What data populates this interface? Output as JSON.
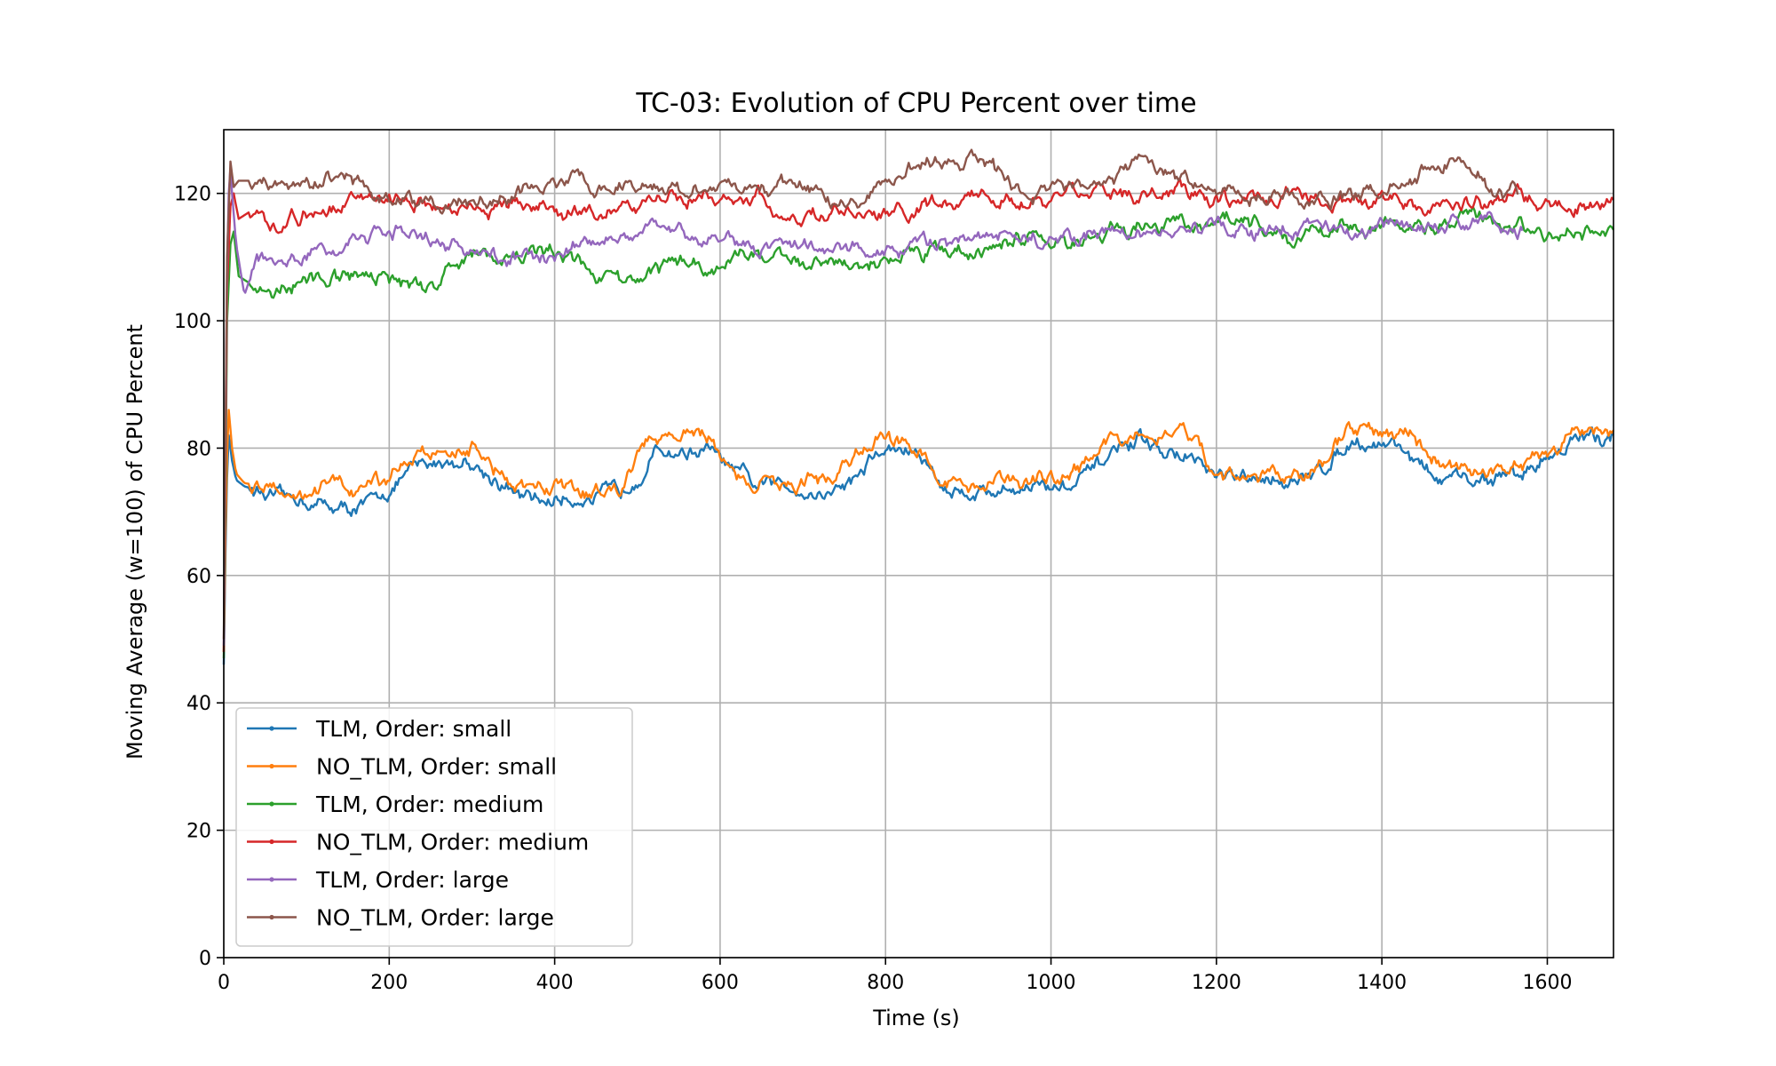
{
  "chart_data": {
    "type": "line",
    "title": "TC-03: Evolution of CPU Percent over time",
    "xlabel": "Time (s)",
    "ylabel": "Moving Average (w=100) of CPU Percent",
    "xlim": [
      0,
      1680
    ],
    "ylim": [
      0,
      130
    ],
    "xticks": [
      0,
      200,
      400,
      600,
      800,
      1000,
      1200,
      1400,
      1600
    ],
    "yticks": [
      0,
      20,
      40,
      60,
      80,
      100,
      120
    ],
    "grid": true,
    "legend_position": "lower-left",
    "series": [
      {
        "name": "TLM, Order: small",
        "color": "#1f77b4",
        "x_end": 1680,
        "points": [
          [
            0,
            46
          ],
          [
            3,
            72
          ],
          [
            6,
            82
          ],
          [
            10,
            78
          ],
          [
            15,
            75
          ],
          [
            25,
            74
          ],
          [
            50,
            73
          ],
          [
            100,
            72.5
          ],
          [
            150,
            71.5
          ],
          [
            180,
            72
          ],
          [
            200,
            74
          ],
          [
            230,
            77.5
          ],
          [
            260,
            78
          ],
          [
            300,
            78
          ],
          [
            330,
            76
          ],
          [
            350,
            73
          ],
          [
            370,
            72
          ],
          [
            400,
            72
          ],
          [
            450,
            72.5
          ],
          [
            480,
            74
          ],
          [
            520,
            79
          ],
          [
            560,
            79
          ],
          [
            590,
            78.5
          ],
          [
            620,
            75
          ],
          [
            640,
            73
          ],
          [
            680,
            73.5
          ],
          [
            730,
            73.5
          ],
          [
            760,
            76
          ],
          [
            790,
            79.5
          ],
          [
            830,
            79.5
          ],
          [
            850,
            77
          ],
          [
            870,
            74
          ],
          [
            900,
            73.5
          ],
          [
            950,
            73.5
          ],
          [
            1000,
            74
          ],
          [
            1040,
            76
          ],
          [
            1070,
            79
          ],
          [
            1120,
            79.5
          ],
          [
            1150,
            79
          ],
          [
            1180,
            77
          ],
          [
            1200,
            74
          ],
          [
            1250,
            74
          ],
          [
            1300,
            74.5
          ],
          [
            1340,
            78
          ],
          [
            1360,
            81
          ],
          [
            1400,
            81
          ],
          [
            1430,
            80
          ],
          [
            1450,
            77
          ],
          [
            1470,
            75.5
          ],
          [
            1520,
            75.5
          ],
          [
            1570,
            75.5
          ],
          [
            1600,
            78
          ],
          [
            1630,
            81
          ],
          [
            1680,
            82
          ]
        ]
      },
      {
        "name": "NO_TLM, Order: small",
        "color": "#ff7f0e",
        "x_end": 1680,
        "points": [
          [
            0,
            48
          ],
          [
            3,
            75
          ],
          [
            6,
            86
          ],
          [
            10,
            80
          ],
          [
            15,
            76
          ],
          [
            25,
            74.5
          ],
          [
            50,
            74
          ],
          [
            100,
            74
          ],
          [
            150,
            73
          ],
          [
            180,
            73.5
          ],
          [
            200,
            76
          ],
          [
            230,
            79.5
          ],
          [
            260,
            79.5
          ],
          [
            300,
            80
          ],
          [
            330,
            77
          ],
          [
            350,
            74
          ],
          [
            370,
            73
          ],
          [
            400,
            73.5
          ],
          [
            450,
            73
          ],
          [
            480,
            76
          ],
          [
            520,
            82
          ],
          [
            560,
            82.5
          ],
          [
            590,
            82
          ],
          [
            620,
            76
          ],
          [
            640,
            74
          ],
          [
            680,
            74
          ],
          [
            730,
            74
          ],
          [
            760,
            78
          ],
          [
            790,
            81
          ],
          [
            830,
            81
          ],
          [
            850,
            78
          ],
          [
            870,
            75
          ],
          [
            900,
            74
          ],
          [
            950,
            74.5
          ],
          [
            1000,
            74.5
          ],
          [
            1040,
            77.5
          ],
          [
            1070,
            82
          ],
          [
            1120,
            82
          ],
          [
            1150,
            82
          ],
          [
            1180,
            79
          ],
          [
            1200,
            75.5
          ],
          [
            1250,
            75
          ],
          [
            1300,
            75.5
          ],
          [
            1340,
            80
          ],
          [
            1360,
            82.5
          ],
          [
            1400,
            82.5
          ],
          [
            1430,
            82
          ],
          [
            1450,
            79
          ],
          [
            1470,
            76
          ],
          [
            1520,
            76
          ],
          [
            1570,
            76.5
          ],
          [
            1600,
            79
          ],
          [
            1630,
            82
          ],
          [
            1680,
            82
          ]
        ]
      },
      {
        "name": "TLM, Order: medium",
        "color": "#2ca02c",
        "x_end": 1680,
        "points": [
          [
            0,
            47
          ],
          [
            4,
            100
          ],
          [
            8,
            112
          ],
          [
            12,
            114
          ],
          [
            18,
            107
          ],
          [
            30,
            106
          ],
          [
            50,
            105
          ],
          [
            80,
            106
          ],
          [
            120,
            107
          ],
          [
            160,
            106
          ],
          [
            200,
            106
          ],
          [
            240,
            105
          ],
          [
            260,
            106
          ],
          [
            280,
            109
          ],
          [
            310,
            110
          ],
          [
            350,
            110
          ],
          [
            400,
            111
          ],
          [
            430,
            108
          ],
          [
            470,
            106
          ],
          [
            510,
            107
          ],
          [
            540,
            109
          ],
          [
            580,
            110
          ],
          [
            600,
            111
          ],
          [
            640,
            112
          ],
          [
            680,
            111
          ],
          [
            720,
            110
          ],
          [
            760,
            110
          ],
          [
            800,
            111
          ],
          [
            850,
            111
          ],
          [
            900,
            111
          ],
          [
            950,
            112
          ],
          [
            1000,
            112
          ],
          [
            1050,
            113
          ],
          [
            1100,
            113
          ],
          [
            1140,
            115
          ],
          [
            1180,
            115
          ],
          [
            1220,
            115
          ],
          [
            1260,
            114
          ],
          [
            1300,
            113
          ],
          [
            1350,
            114
          ],
          [
            1400,
            115
          ],
          [
            1450,
            115
          ],
          [
            1500,
            115
          ],
          [
            1550,
            114
          ],
          [
            1600,
            114
          ],
          [
            1650,
            114
          ],
          [
            1680,
            115
          ]
        ]
      },
      {
        "name": "NO_TLM, Order: medium",
        "color": "#d62728",
        "x_end": 1680,
        "points": [
          [
            0,
            48
          ],
          [
            4,
            105
          ],
          [
            8,
            118
          ],
          [
            12,
            120
          ],
          [
            18,
            116
          ],
          [
            30,
            117
          ],
          [
            60,
            116
          ],
          [
            100,
            117
          ],
          [
            150,
            117
          ],
          [
            200,
            118
          ],
          [
            250,
            117
          ],
          [
            300,
            118
          ],
          [
            350,
            118
          ],
          [
            400,
            118
          ],
          [
            450,
            118
          ],
          [
            500,
            119
          ],
          [
            550,
            120
          ],
          [
            600,
            119
          ],
          [
            650,
            118
          ],
          [
            700,
            117
          ],
          [
            750,
            117
          ],
          [
            800,
            117
          ],
          [
            850,
            118
          ],
          [
            900,
            119
          ],
          [
            950,
            118
          ],
          [
            1000,
            118
          ],
          [
            1050,
            119
          ],
          [
            1100,
            119
          ],
          [
            1150,
            120
          ],
          [
            1200,
            119
          ],
          [
            1250,
            119
          ],
          [
            1300,
            120
          ],
          [
            1350,
            119
          ],
          [
            1400,
            120
          ],
          [
            1450,
            118
          ],
          [
            1500,
            119
          ],
          [
            1550,
            119
          ],
          [
            1600,
            119
          ],
          [
            1650,
            118
          ],
          [
            1680,
            120
          ]
        ]
      },
      {
        "name": "TLM, Order: large",
        "color": "#9467bd",
        "x_end": 1570,
        "points": [
          [
            0,
            49
          ],
          [
            4,
            108
          ],
          [
            7,
            126
          ],
          [
            10,
            120
          ],
          [
            15,
            112
          ],
          [
            25,
            104
          ],
          [
            40,
            110
          ],
          [
            60,
            110
          ],
          [
            100,
            111
          ],
          [
            150,
            113
          ],
          [
            200,
            113
          ],
          [
            240,
            113
          ],
          [
            280,
            112
          ],
          [
            300,
            111
          ],
          [
            340,
            110
          ],
          [
            400,
            111
          ],
          [
            450,
            113
          ],
          [
            500,
            113
          ],
          [
            550,
            113
          ],
          [
            600,
            112
          ],
          [
            650,
            112
          ],
          [
            700,
            113
          ],
          [
            750,
            112
          ],
          [
            800,
            111
          ],
          [
            850,
            112
          ],
          [
            900,
            113
          ],
          [
            950,
            113
          ],
          [
            1000,
            113
          ],
          [
            1050,
            114
          ],
          [
            1100,
            113
          ],
          [
            1150,
            114
          ],
          [
            1200,
            115
          ],
          [
            1250,
            114
          ],
          [
            1300,
            114
          ],
          [
            1350,
            114
          ],
          [
            1400,
            115
          ],
          [
            1450,
            115
          ],
          [
            1500,
            115
          ],
          [
            1550,
            114
          ],
          [
            1570,
            114
          ]
        ]
      },
      {
        "name": "NO_TLM, Order: large",
        "color": "#8c564b",
        "x_end": 1565,
        "points": [
          [
            0,
            50
          ],
          [
            4,
            110
          ],
          [
            8,
            125
          ],
          [
            12,
            121
          ],
          [
            18,
            122
          ],
          [
            30,
            122
          ],
          [
            60,
            121
          ],
          [
            100,
            120
          ],
          [
            150,
            123
          ],
          [
            200,
            119
          ],
          [
            250,
            118
          ],
          [
            300,
            118
          ],
          [
            350,
            120
          ],
          [
            400,
            121
          ],
          [
            430,
            122
          ],
          [
            450,
            121
          ],
          [
            500,
            120
          ],
          [
            550,
            120
          ],
          [
            600,
            120
          ],
          [
            650,
            121
          ],
          [
            700,
            121
          ],
          [
            750,
            120
          ],
          [
            800,
            122
          ],
          [
            850,
            124
          ],
          [
            900,
            125
          ],
          [
            930,
            124
          ],
          [
            950,
            121
          ],
          [
            1000,
            120
          ],
          [
            1050,
            121
          ],
          [
            1100,
            124
          ],
          [
            1150,
            122
          ],
          [
            1200,
            121
          ],
          [
            1250,
            120
          ],
          [
            1300,
            120
          ],
          [
            1350,
            120
          ],
          [
            1400,
            121
          ],
          [
            1450,
            123
          ],
          [
            1500,
            124
          ],
          [
            1550,
            120
          ],
          [
            1565,
            120
          ]
        ]
      }
    ]
  }
}
